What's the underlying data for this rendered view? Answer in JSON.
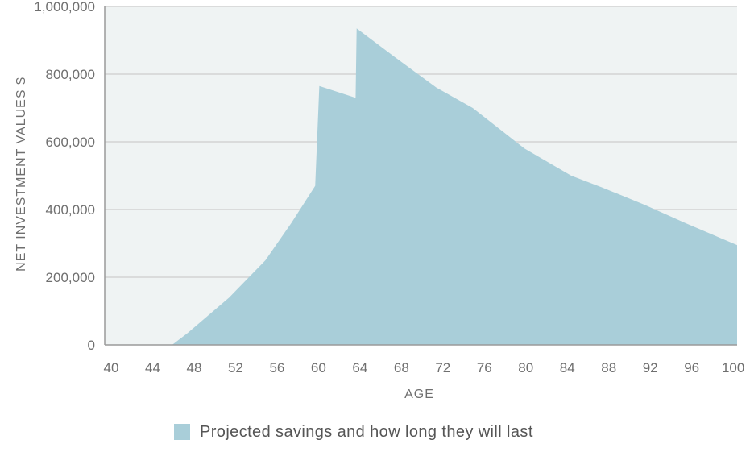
{
  "chart_data": {
    "type": "area",
    "title": "",
    "xlabel": "AGE",
    "ylabel": "NET INVESTMENT VALUES $",
    "xlim": [
      40,
      101
    ],
    "ylim": [
      0,
      1000000
    ],
    "x_ticks": [
      40,
      44,
      48,
      52,
      56,
      60,
      64,
      68,
      72,
      76,
      80,
      84,
      88,
      92,
      96,
      100
    ],
    "y_ticks": [
      0,
      200000,
      400000,
      600000,
      800000,
      1000000
    ],
    "y_tick_labels": [
      "0",
      "200,000",
      "400,000",
      "600,000",
      "800,000",
      "1,000,000"
    ],
    "grid": "horizontal",
    "legend_position": "bottom",
    "colors": {
      "fill": "#a9ced9",
      "plot_background": "#eff3f3",
      "grid": "#d3d3d3"
    },
    "series": [
      {
        "name": "Projected savings and how long they will last",
        "points": [
          {
            "x": 40,
            "y": 0
          },
          {
            "x": 46.5,
            "y": 0
          },
          {
            "x": 48,
            "y": 35000
          },
          {
            "x": 52,
            "y": 140000
          },
          {
            "x": 55.5,
            "y": 250000
          },
          {
            "x": 58,
            "y": 360000
          },
          {
            "x": 60.3,
            "y": 470000
          },
          {
            "x": 60.7,
            "y": 765000
          },
          {
            "x": 64.2,
            "y": 730000
          },
          {
            "x": 64.3,
            "y": 935000
          },
          {
            "x": 68,
            "y": 850000
          },
          {
            "x": 72,
            "y": 760000
          },
          {
            "x": 75.5,
            "y": 700000
          },
          {
            "x": 80.5,
            "y": 580000
          },
          {
            "x": 85,
            "y": 500000
          },
          {
            "x": 88,
            "y": 465000
          },
          {
            "x": 92,
            "y": 415000
          },
          {
            "x": 96,
            "y": 360000
          },
          {
            "x": 101,
            "y": 295000
          }
        ]
      }
    ]
  }
}
